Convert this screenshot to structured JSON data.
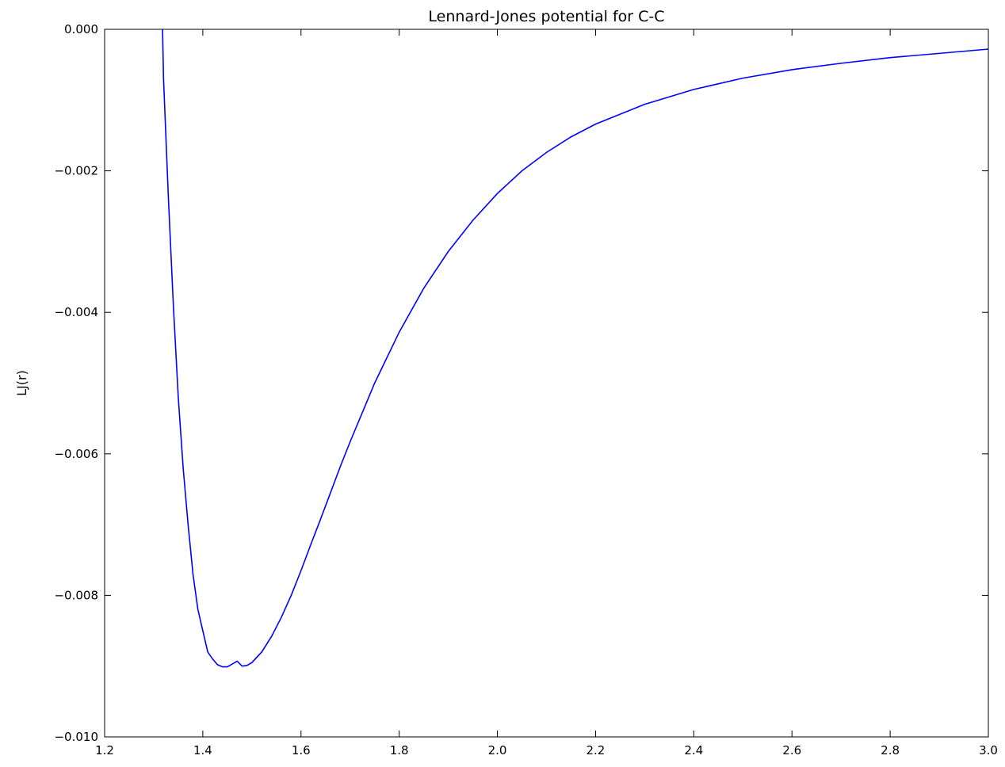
{
  "chart_data": {
    "type": "line",
    "title": "Lennard-Jones potential for C-C",
    "xlabel": "",
    "ylabel": "LJ(r)",
    "xlim": [
      1.2,
      3.0
    ],
    "ylim": [
      -0.01,
      0.0
    ],
    "x_ticks": [
      1.2,
      1.4,
      1.6,
      1.8,
      2.0,
      2.2,
      2.4,
      2.6,
      2.8,
      3.0
    ],
    "x_tick_labels": [
      "1.2",
      "1.4",
      "1.6",
      "1.8",
      "2.0",
      "2.2",
      "2.4",
      "2.6",
      "2.8",
      "3.0"
    ],
    "y_ticks": [
      0.0,
      -0.002,
      -0.004,
      -0.006,
      -0.008,
      -0.01
    ],
    "y_tick_labels": [
      "0.000",
      "−0.002",
      "−0.004",
      "−0.006",
      "−0.008",
      "−0.010"
    ],
    "grid": false,
    "series": [
      {
        "color": "#0000ff",
        "x": [
          1.318,
          1.32,
          1.33,
          1.34,
          1.35,
          1.36,
          1.37,
          1.38,
          1.39,
          1.4,
          1.41,
          1.42,
          1.43,
          1.44,
          1.45,
          1.46,
          1.47,
          1.48,
          1.49,
          1.5,
          1.52,
          1.54,
          1.56,
          1.58,
          1.6,
          1.62,
          1.64,
          1.66,
          1.68,
          1.7,
          1.75,
          1.8,
          1.85,
          1.9,
          1.95,
          2.0,
          2.05,
          2.1,
          2.15,
          2.2,
          2.3,
          2.4,
          2.5,
          2.6,
          2.7,
          2.8,
          2.9,
          3.0
        ],
        "y": [
          0.0,
          -0.0007,
          -0.0024,
          -0.0039,
          -0.0052,
          -0.0062,
          -0.007,
          -0.0077,
          -0.0082,
          -0.0085,
          -0.0088,
          -0.0089,
          -0.00898,
          -0.00901,
          -0.00901,
          -0.00897,
          -0.00893,
          -0.009,
          -0.00899,
          -0.00895,
          -0.0088,
          -0.00858,
          -0.00831,
          -0.008,
          -0.00765,
          -0.00728,
          -0.00692,
          -0.00655,
          -0.00618,
          -0.00583,
          -0.005,
          -0.00428,
          -0.00366,
          -0.00314,
          -0.0027,
          -0.00232,
          -0.002,
          -0.00174,
          -0.00152,
          -0.00134,
          -0.00106,
          -0.00085,
          -0.00069,
          -0.00057,
          -0.00048,
          -0.0004,
          -0.00034,
          -0.00028
        ]
      }
    ]
  }
}
